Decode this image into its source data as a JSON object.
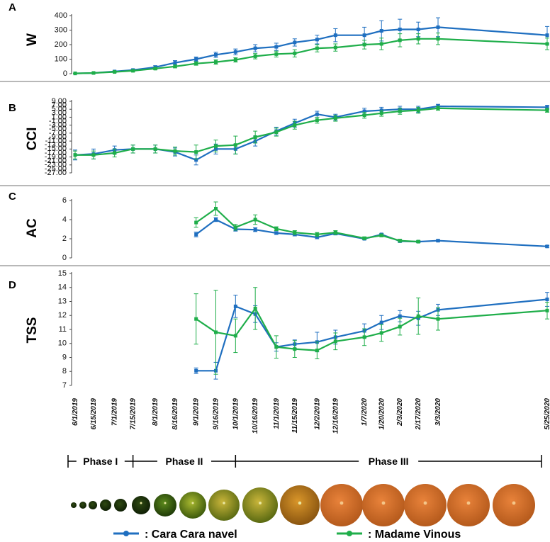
{
  "colors": {
    "cara": "#1f6fc0",
    "vinous": "#1fae4a",
    "divider": "#a0a0a0",
    "axis": "#444444"
  },
  "x_dates": [
    "6/1/2019",
    "6/15/2019",
    "7/1/2019",
    "7/15/2019",
    "8/1/2019",
    "8/16/2019",
    "9/1/2019",
    "9/16/2019",
    "10/1/2019",
    "10/16/2019",
    "11/1/2019",
    "11/15/2019",
    "12/2/2019",
    "12/16/2019",
    "1/7/2020",
    "1/20/2020",
    "2/3/2020",
    "2/17/2020",
    "3/3/2020",
    "5/25/2020"
  ],
  "chart_data": [
    {
      "type": "line",
      "panel_label": "A",
      "ylabel": "W",
      "x": [
        "6/1/2019",
        "6/15/2019",
        "7/1/2019",
        "7/15/2019",
        "8/1/2019",
        "8/16/2019",
        "9/1/2019",
        "9/16/2019",
        "10/1/2019",
        "10/16/2019",
        "11/1/2019",
        "11/15/2019",
        "12/2/2019",
        "12/16/2019",
        "1/7/2020",
        "1/20/2020",
        "2/3/2020",
        "2/17/2020",
        "3/3/2020",
        "5/25/2020"
      ],
      "ylim": [
        0,
        400
      ],
      "yticks": [
        "0",
        "100",
        "200",
        "300",
        "400"
      ],
      "series": [
        {
          "name": "Cara Cara navel",
          "color_key": "cara",
          "values": [
            2,
            5,
            15,
            25,
            45,
            75,
            100,
            130,
            150,
            175,
            185,
            215,
            235,
            265,
            265,
            295,
            305,
            305,
            320,
            265
          ],
          "errors": [
            1,
            2,
            4,
            6,
            10,
            15,
            15,
            18,
            20,
            25,
            25,
            25,
            30,
            45,
            55,
            70,
            70,
            50,
            65,
            60
          ]
        },
        {
          "name": "Madame Vinous",
          "color_key": "vinous",
          "values": [
            2,
            5,
            12,
            20,
            35,
            50,
            70,
            80,
            95,
            120,
            135,
            140,
            175,
            180,
            200,
            205,
            230,
            240,
            240,
            205
          ],
          "errors": [
            1,
            2,
            3,
            5,
            8,
            10,
            12,
            15,
            15,
            18,
            20,
            25,
            25,
            25,
            30,
            40,
            45,
            35,
            40,
            40
          ]
        }
      ]
    },
    {
      "type": "line",
      "panel_label": "B",
      "ylabel": "CCI",
      "x": [
        "6/1/2019",
        "6/15/2019",
        "7/1/2019",
        "7/15/2019",
        "8/1/2019",
        "8/16/2019",
        "9/1/2019",
        "9/16/2019",
        "10/1/2019",
        "10/16/2019",
        "11/1/2019",
        "11/15/2019",
        "12/2/2019",
        "12/16/2019",
        "1/7/2020",
        "1/20/2020",
        "2/3/2020",
        "2/17/2020",
        "3/3/2020",
        "5/25/2020"
      ],
      "ylim": [
        -27,
        9
      ],
      "yticks": [
        "9.00",
        "5.00",
        "1.00",
        "-3.00",
        "-7.00",
        "-11.00",
        "-15.00",
        "-19.00",
        "-23.00",
        "-27.00"
      ],
      "yticks_minor": [
        "7.00",
        "3.00",
        "-1.00",
        "-5.00",
        "-9.00",
        "-13.00",
        "-17.00",
        "-21.00",
        "-25.00"
      ],
      "series": [
        {
          "name": "Cara Cara navel",
          "color_key": "cara",
          "values": [
            -18,
            -17.5,
            -15.5,
            -15,
            -15,
            -16.5,
            -20.5,
            -15,
            -15,
            -11,
            -6,
            -2,
            2.5,
            1,
            4,
            4.5,
            5,
            5,
            6.5,
            6
          ],
          "errors": [
            2.5,
            2.5,
            2,
            2,
            2,
            2,
            2.5,
            2.5,
            2.5,
            2.5,
            2,
            2,
            1.5,
            1.5,
            1.5,
            1.5,
            1.5,
            1.5,
            1,
            1
          ]
        },
        {
          "name": "Madame Vinous",
          "color_key": "vinous",
          "values": [
            -18,
            -18,
            -17,
            -15,
            -15,
            -16,
            -16.5,
            -13.5,
            -13,
            -9,
            -6.5,
            -3,
            -0.5,
            0.5,
            2,
            3,
            4,
            4.5,
            5.5,
            4.5
          ],
          "errors": [
            2,
            2,
            2,
            2,
            2,
            2,
            3.5,
            3,
            4.5,
            3,
            2,
            2,
            1.5,
            1.5,
            1.5,
            1.5,
            1.5,
            1.5,
            1,
            1
          ]
        }
      ]
    },
    {
      "type": "line",
      "panel_label": "C",
      "ylabel": "AC",
      "x": [
        "9/1/2019",
        "9/16/2019",
        "10/1/2019",
        "10/16/2019",
        "11/1/2019",
        "11/15/2019",
        "12/2/2019",
        "12/16/2019",
        "1/7/2020",
        "1/20/2020",
        "2/3/2020",
        "2/17/2020",
        "3/3/2020",
        "5/25/2020"
      ],
      "ylim": [
        0,
        6
      ],
      "yticks": [
        "0",
        "2",
        "4",
        "6"
      ],
      "series": [
        {
          "name": "Cara Cara navel",
          "color_key": "cara",
          "values": [
            2.45,
            4.0,
            3.0,
            2.95,
            2.6,
            2.45,
            2.15,
            2.55,
            2.0,
            2.45,
            1.75,
            1.7,
            1.8,
            1.2
          ],
          "errors": [
            0.25,
            0.2,
            0.2,
            0.2,
            0.15,
            0.15,
            0.15,
            0.15,
            0.1,
            0.1,
            0.1,
            0.1,
            0.1,
            0.1
          ]
        },
        {
          "name": "Madame Vinous",
          "color_key": "vinous",
          "values": [
            3.7,
            5.15,
            3.2,
            4.0,
            3.05,
            2.65,
            2.45,
            2.65,
            2.05,
            2.35,
            1.8,
            1.7,
            null,
            null
          ],
          "errors": [
            0.5,
            0.7,
            0.3,
            0.5,
            0.2,
            0.2,
            0.2,
            0.2,
            0.15,
            0.15,
            0.15,
            0.1,
            null,
            null
          ]
        }
      ]
    },
    {
      "type": "line",
      "panel_label": "D",
      "ylabel": "TSS",
      "x": [
        "9/1/2019",
        "9/16/2019",
        "10/1/2019",
        "10/16/2019",
        "11/1/2019",
        "11/15/2019",
        "12/2/2019",
        "12/16/2019",
        "1/7/2020",
        "1/20/2020",
        "2/3/2020",
        "2/17/2020",
        "3/3/2020",
        "5/25/2020"
      ],
      "ylim": [
        7,
        15
      ],
      "yticks": [
        "7",
        "8",
        "9",
        "10",
        "11",
        "12",
        "13",
        "14",
        "15"
      ],
      "series": [
        {
          "name": "Cara Cara navel",
          "color_key": "cara",
          "values": [
            8.05,
            8.05,
            12.65,
            12.1,
            9.75,
            9.95,
            10.1,
            10.45,
            10.9,
            11.5,
            11.95,
            11.8,
            12.4,
            13.15
          ],
          "errors": [
            0.2,
            0.6,
            0.8,
            0.6,
            0.3,
            0.3,
            0.7,
            0.5,
            0.5,
            0.5,
            0.4,
            0.5,
            0.4,
            0.5
          ]
        },
        {
          "name": "Madame Vinous",
          "color_key": "vinous",
          "values": [
            11.75,
            10.8,
            10.55,
            12.5,
            9.75,
            9.6,
            9.5,
            10.15,
            10.45,
            10.75,
            11.2,
            11.95,
            11.75,
            12.35
          ],
          "errors": [
            1.8,
            3.0,
            1.2,
            1.5,
            0.8,
            0.6,
            0.6,
            0.6,
            0.6,
            0.6,
            0.6,
            1.3,
            0.8,
            0.6
          ]
        }
      ]
    }
  ],
  "phases": [
    {
      "label": "Phase I",
      "from": "6/1/2019",
      "to": "7/15/2019"
    },
    {
      "label": "Phase II",
      "from": "7/15/2019",
      "to": "10/1/2019"
    },
    {
      "label": "Phase III",
      "from": "10/1/2019",
      "to": "5/25/2020"
    }
  ],
  "fruits": [
    {
      "stage": 1,
      "tone": "dark-green"
    },
    {
      "stage": 2,
      "tone": "dark-green"
    },
    {
      "stage": 3,
      "tone": "dark-green"
    },
    {
      "stage": 4,
      "tone": "dark-green"
    },
    {
      "stage": 5,
      "tone": "dark-green"
    },
    {
      "stage": 6,
      "tone": "dark-green"
    },
    {
      "stage": 7,
      "tone": "green"
    },
    {
      "stage": 8,
      "tone": "green-yellow"
    },
    {
      "stage": 9,
      "tone": "yellow-green"
    },
    {
      "stage": 10,
      "tone": "yellow-green"
    },
    {
      "stage": 11,
      "tone": "yellow-orange"
    },
    {
      "stage": 12,
      "tone": "orange"
    },
    {
      "stage": 13,
      "tone": "orange"
    },
    {
      "stage": 14,
      "tone": "orange"
    },
    {
      "stage": 15,
      "tone": "orange"
    },
    {
      "stage": 16,
      "tone": "orange"
    },
    {
      "stage": 17,
      "tone": "orange"
    }
  ],
  "legend": [
    {
      "label": ": Cara Cara navel",
      "color_key": "cara"
    },
    {
      "label": ": Madame Vinous",
      "color_key": "vinous"
    }
  ]
}
